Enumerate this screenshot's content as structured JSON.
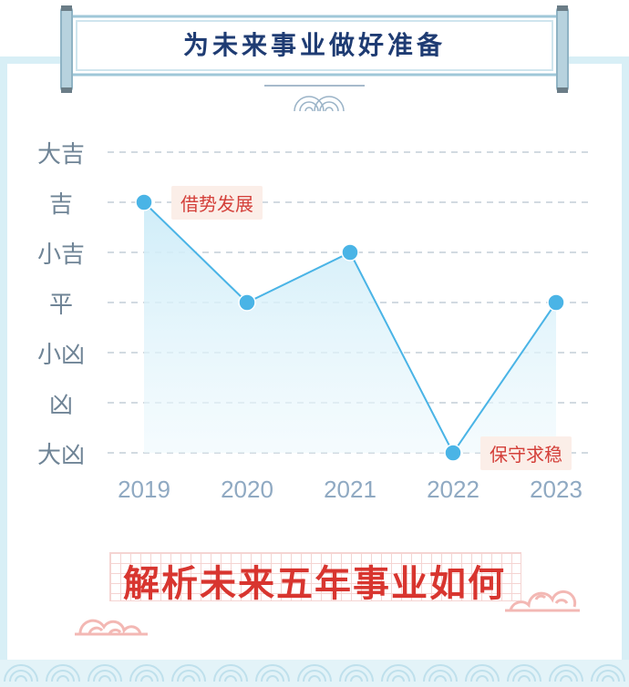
{
  "banner": {
    "title": "为未来事业做好准备"
  },
  "chart_data": {
    "type": "line",
    "categories": [
      "2019",
      "2020",
      "2021",
      "2022",
      "2023"
    ],
    "y_levels": [
      "大凶",
      "凶",
      "小凶",
      "平",
      "小吉",
      "吉",
      "大吉"
    ],
    "values": [
      "吉",
      "平",
      "小吉",
      "大凶",
      "平"
    ],
    "annotations": [
      {
        "category": "2019",
        "text": "借势发展"
      },
      {
        "category": "2022",
        "text": "保守求稳"
      }
    ],
    "grid": true,
    "line_color": "#4ab4e6",
    "fill_color": "#d4eff9"
  },
  "footer": {
    "title": "解析未来五年事业如何"
  },
  "colors": {
    "frame": "#d8eff6",
    "banner_text": "#1f3c73",
    "footer_text": "#d8352f",
    "tag_bg": "#fbeee8",
    "tag_text": "#d4403a"
  }
}
